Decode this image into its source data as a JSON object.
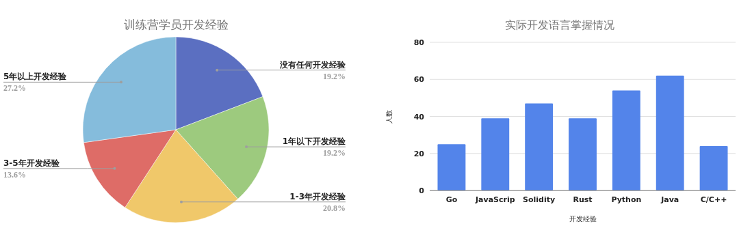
{
  "chart_data": [
    {
      "type": "pie",
      "title": "训练营学员开发经验",
      "categories": [
        "没有任何开发经验",
        "1年以下开发经验",
        "1-3年开发经验",
        "3-5年开发经验",
        "5年以上开发经验"
      ],
      "values": [
        19.2,
        19.2,
        20.8,
        13.6,
        27.2
      ],
      "colors": [
        "#5b6fc1",
        "#9dca7e",
        "#f0c86a",
        "#de6c67",
        "#85bcdc"
      ],
      "value_labels": [
        "19.2%",
        "19.2%",
        "20.8%",
        "13.6%",
        "27.2%"
      ]
    },
    {
      "type": "bar",
      "title": "实际开发语言掌握情况",
      "categories": [
        "Go",
        "JavaScrip",
        "Solidity",
        "Rust",
        "Python",
        "Java",
        "C/C++"
      ],
      "values": [
        25,
        39,
        47,
        39,
        54,
        62,
        24
      ],
      "color": "#5384ea",
      "xlabel": "开发经验",
      "ylabel": "人数",
      "ylim": [
        0,
        80
      ],
      "yticks": [
        0,
        20,
        40,
        60,
        80
      ],
      "grid": "y"
    }
  ]
}
